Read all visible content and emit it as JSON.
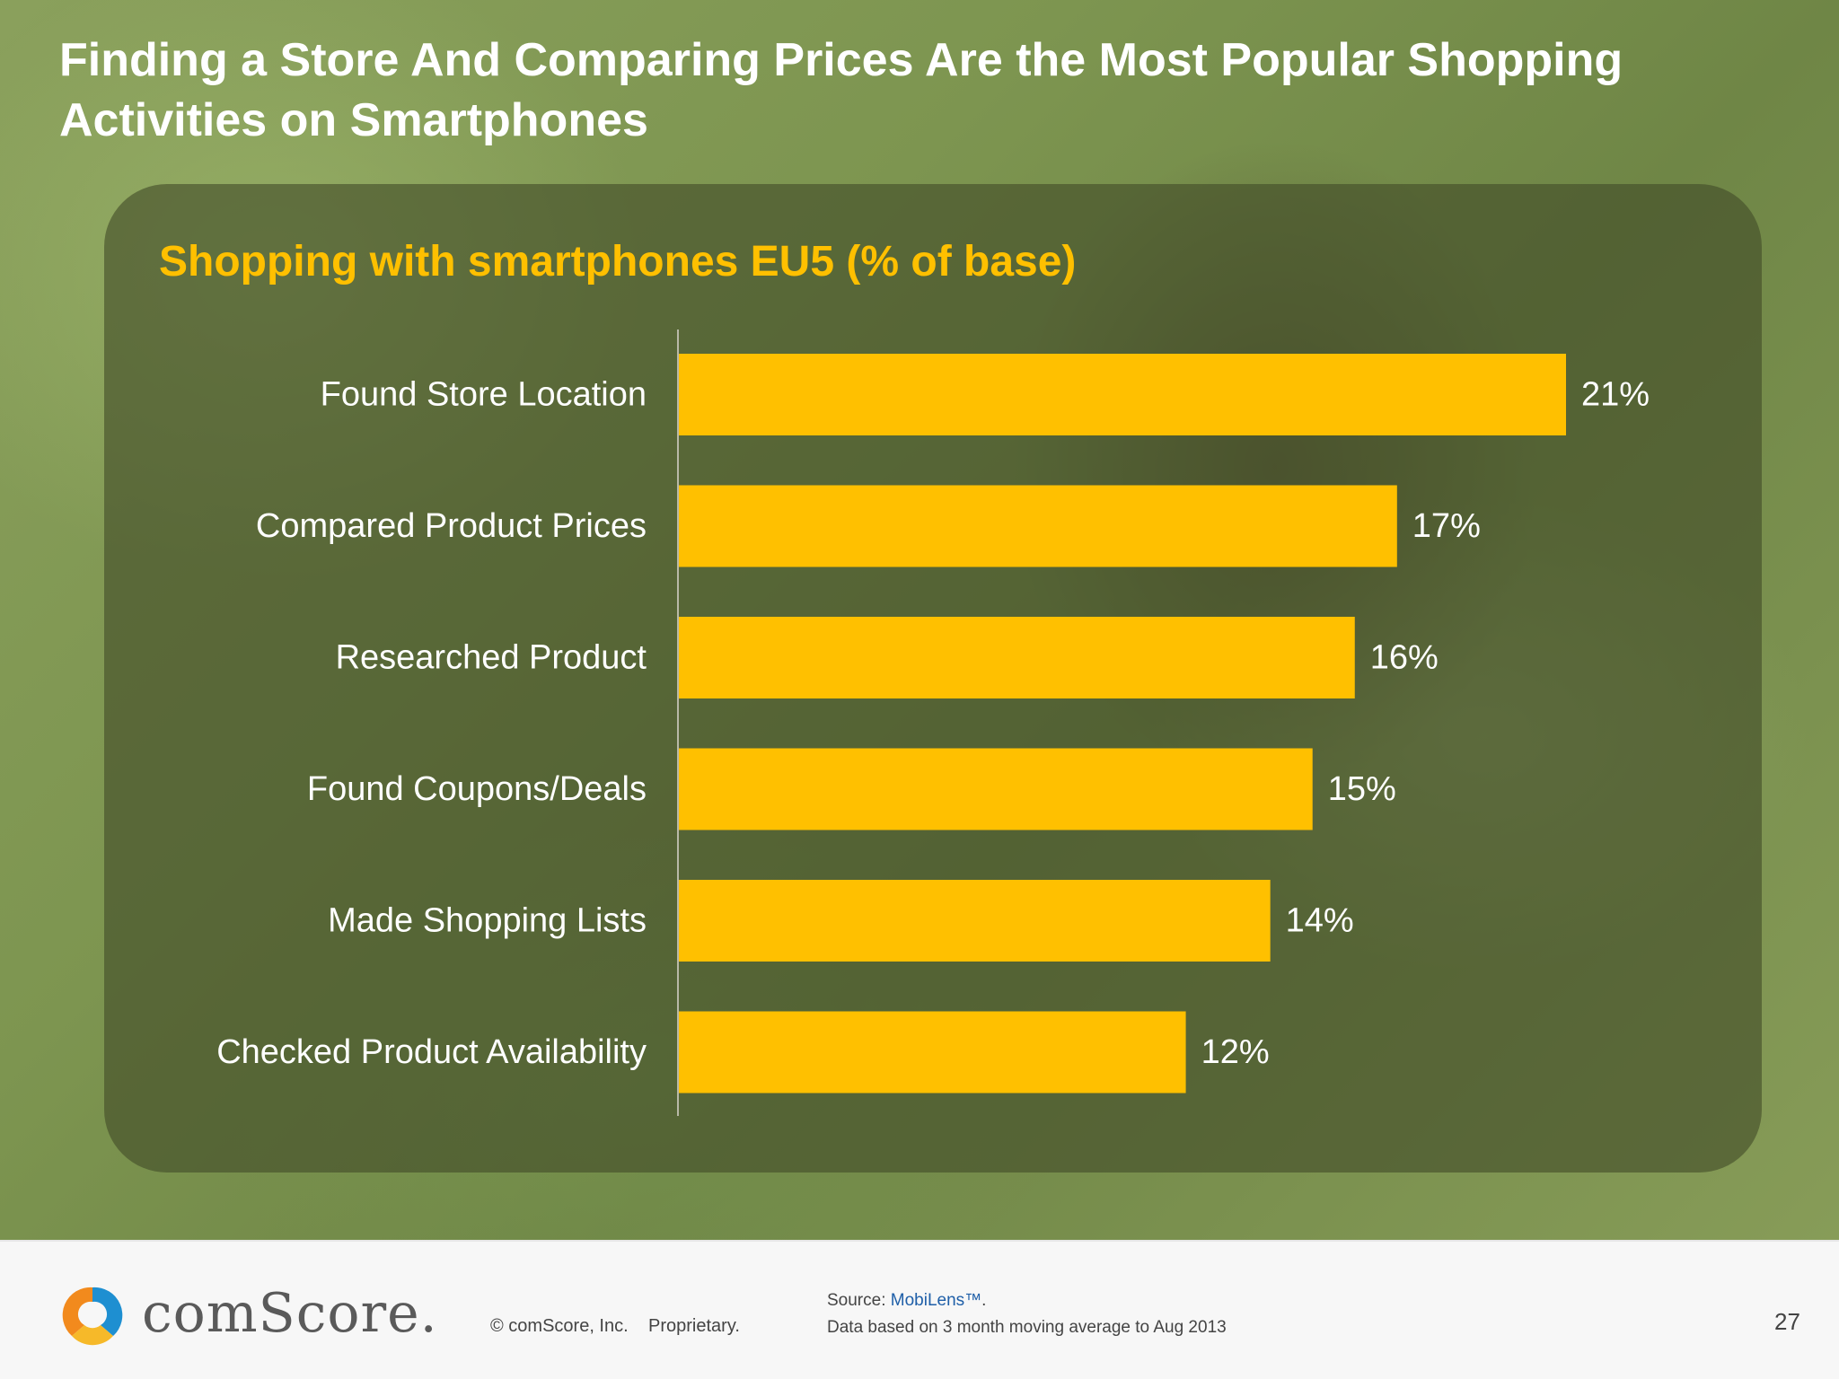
{
  "slide": {
    "title": "Finding a Store And Comparing Prices Are the Most Popular Shopping Activities on Smartphones",
    "page_number": "27"
  },
  "chart_data": {
    "type": "bar",
    "orientation": "horizontal",
    "title": "Shopping with smartphones EU5 (% of base)",
    "categories": [
      "Found Store Location",
      "Compared Product Prices",
      "Researched Product",
      "Found Coupons/Deals",
      "Made Shopping Lists",
      "Checked Product Availability"
    ],
    "values": [
      21,
      17,
      16,
      15,
      14,
      12
    ],
    "value_labels": [
      "21%",
      "17%",
      "16%",
      "15%",
      "14%",
      "12%"
    ],
    "bar_color": "#ffc000",
    "xlim": [
      0,
      21
    ],
    "grid": false,
    "legend": "none"
  },
  "footer": {
    "brand": "comScore.",
    "copyright": "© comScore, Inc.",
    "proprietary": "Proprietary.",
    "source_prefix": "Source: ",
    "source_link": "MobiLens™",
    "source_suffix": ".",
    "note": "Data based on 3 month moving average to Aug 2013"
  },
  "colors": {
    "accent": "#ffc000",
    "title_text": "#ffffff",
    "label_text": "#ffffff"
  }
}
